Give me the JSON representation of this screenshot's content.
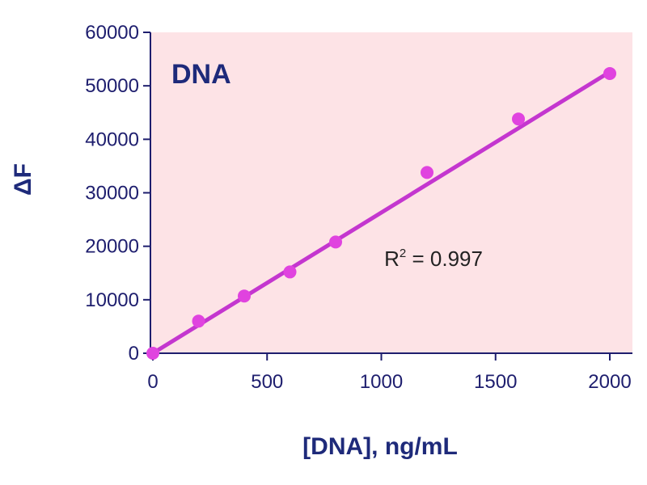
{
  "chart_data": {
    "type": "scatter",
    "title": "DNA",
    "xlabel": "[DNA], ng/mL",
    "ylabel": "ΔF",
    "xlim": [
      0,
      2000
    ],
    "ylim": [
      0,
      60000
    ],
    "xticks": [
      "0",
      "500",
      "1000",
      "1500",
      "2000"
    ],
    "yticks": [
      "0",
      "10000",
      "20000",
      "30000",
      "40000",
      "50000",
      "60000"
    ],
    "series": [
      {
        "x": [
          0,
          200,
          400,
          600,
          800,
          1200,
          1600,
          2000
        ],
        "y": [
          0,
          6000,
          10700,
          15200,
          20800,
          33800,
          43800,
          52300
        ]
      }
    ],
    "fit_line": {
      "x": [
        0,
        2000
      ],
      "y": [
        0,
        52600
      ]
    },
    "annotation": {
      "base": "R",
      "sup": "2",
      "rest": " = 0.997",
      "x": 1650,
      "y": 17500
    },
    "grid": false,
    "colors": {
      "plot_background": "#fde3e6",
      "marker": "#e043df",
      "line": "#c436cf",
      "axis": "#1e1e6e",
      "text": "#1e2a7a"
    }
  }
}
